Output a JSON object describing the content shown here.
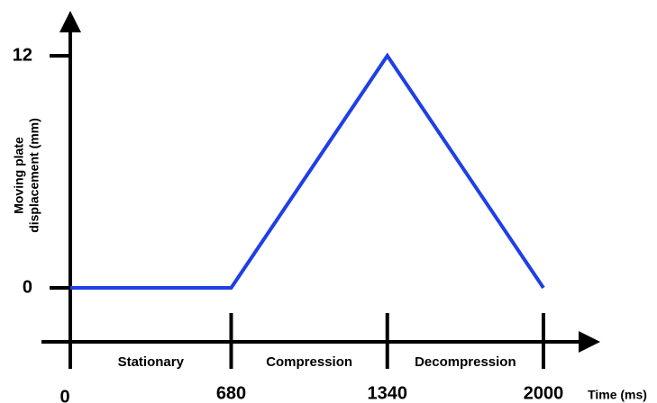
{
  "chart_data": {
    "type": "line",
    "ylabel": [
      "Moving plate",
      "displacement (mm)"
    ],
    "xlabel": "Time (ms)",
    "x": [
      0,
      680,
      1340,
      2000
    ],
    "series": [
      {
        "color": "#1f3fe6",
        "values": [
          0,
          0,
          12,
          0
        ]
      }
    ],
    "xlim": [
      0,
      2000
    ],
    "xticks": [
      0,
      680,
      1340,
      2000
    ],
    "ylim": [
      0,
      12
    ],
    "yticks": [
      0,
      12
    ],
    "phases": [
      "Stationary",
      "Compression",
      "Decompression"
    ]
  }
}
